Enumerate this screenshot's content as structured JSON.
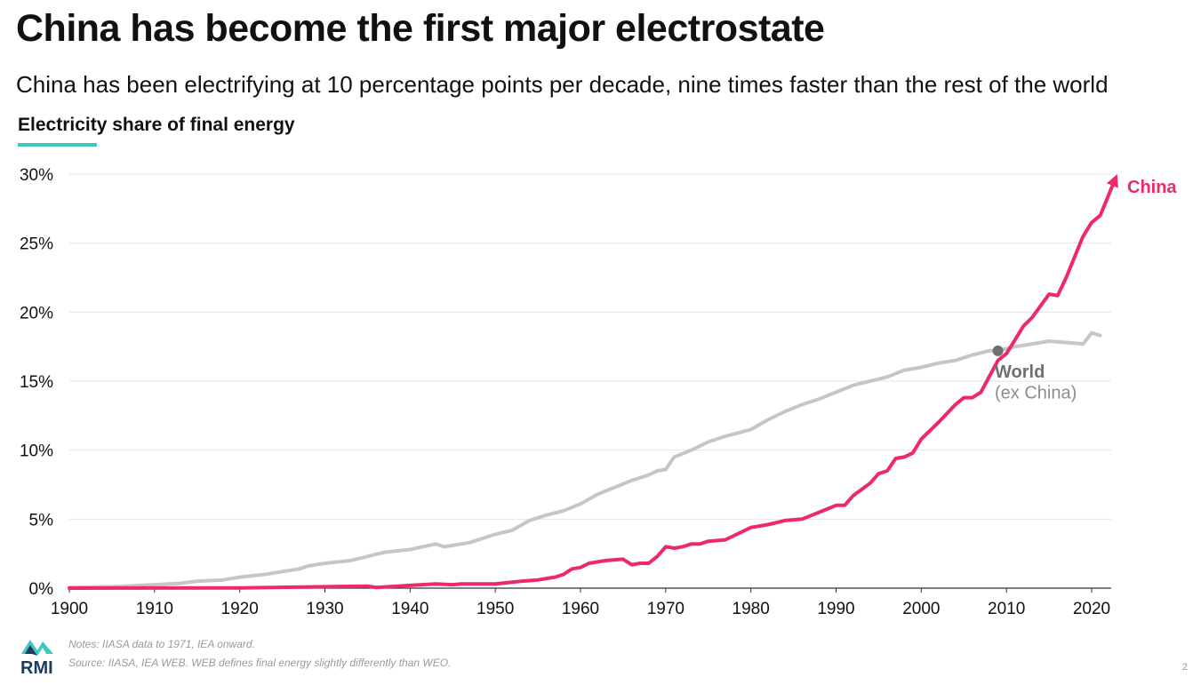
{
  "header": {
    "title": "China has become the first major electrostate",
    "subtitle": "China has been electrifying at 10 percentage points per decade, nine times faster than the rest of the world",
    "chart_label": "Electricity share of final energy"
  },
  "footer": {
    "logo_text": "RMI",
    "notes": "Notes: IIASA data to 1971, IEA onward.",
    "source": "Source: IIASA, IEA WEB. WEB defines final energy slightly differently than WEO.",
    "page_number": "2"
  },
  "colors": {
    "china": "#ee2a66",
    "world": "#c6c6c6",
    "world_label": "#6f6f6f",
    "accent": "#3cc7c0",
    "grid": "#e6e6e6",
    "axis": "#333333"
  },
  "chart_data": {
    "type": "line",
    "title": "Electricity share of final energy",
    "xlabel": "",
    "ylabel": "",
    "xlim": [
      1900,
      2023
    ],
    "ylim": [
      0,
      30
    ],
    "x_ticks": [
      1900,
      1910,
      1920,
      1930,
      1940,
      1950,
      1960,
      1970,
      1980,
      1990,
      2000,
      2010,
      2020
    ],
    "y_ticks": [
      0,
      5,
      10,
      15,
      20,
      25,
      30
    ],
    "y_tick_labels": [
      "0%",
      "5%",
      "10%",
      "15%",
      "20%",
      "25%",
      "30%"
    ],
    "grid": true,
    "series": [
      {
        "name": "World",
        "name_sub": "(ex China)",
        "key": "world",
        "points": [
          [
            1900,
            0.05
          ],
          [
            1905,
            0.1
          ],
          [
            1910,
            0.25
          ],
          [
            1913,
            0.35
          ],
          [
            1915,
            0.5
          ],
          [
            1918,
            0.6
          ],
          [
            1920,
            0.8
          ],
          [
            1923,
            1.0
          ],
          [
            1925,
            1.2
          ],
          [
            1927,
            1.4
          ],
          [
            1928,
            1.6
          ],
          [
            1930,
            1.8
          ],
          [
            1933,
            2.0
          ],
          [
            1935,
            2.3
          ],
          [
            1937,
            2.6
          ],
          [
            1940,
            2.8
          ],
          [
            1943,
            3.2
          ],
          [
            1944,
            3.0
          ],
          [
            1947,
            3.3
          ],
          [
            1950,
            3.9
          ],
          [
            1952,
            4.2
          ],
          [
            1954,
            4.9
          ],
          [
            1956,
            5.3
          ],
          [
            1958,
            5.6
          ],
          [
            1960,
            6.1
          ],
          [
            1962,
            6.8
          ],
          [
            1964,
            7.3
          ],
          [
            1966,
            7.8
          ],
          [
            1968,
            8.2
          ],
          [
            1969,
            8.5
          ],
          [
            1970,
            8.6
          ],
          [
            1971,
            9.5
          ],
          [
            1973,
            10.0
          ],
          [
            1975,
            10.6
          ],
          [
            1977,
            11.0
          ],
          [
            1980,
            11.5
          ],
          [
            1982,
            12.2
          ],
          [
            1984,
            12.8
          ],
          [
            1986,
            13.3
          ],
          [
            1988,
            13.7
          ],
          [
            1990,
            14.2
          ],
          [
            1992,
            14.7
          ],
          [
            1994,
            15.0
          ],
          [
            1996,
            15.3
          ],
          [
            1998,
            15.8
          ],
          [
            2000,
            16.0
          ],
          [
            2002,
            16.3
          ],
          [
            2004,
            16.5
          ],
          [
            2006,
            16.9
          ],
          [
            2008,
            17.2
          ],
          [
            2009,
            17.2
          ],
          [
            2011,
            17.5
          ],
          [
            2013,
            17.7
          ],
          [
            2015,
            17.9
          ],
          [
            2017,
            17.8
          ],
          [
            2019,
            17.7
          ],
          [
            2020,
            18.5
          ],
          [
            2021,
            18.3
          ]
        ]
      },
      {
        "name": "China",
        "key": "china",
        "points": [
          [
            1900,
            0.0
          ],
          [
            1920,
            0.02
          ],
          [
            1930,
            0.1
          ],
          [
            1935,
            0.15
          ],
          [
            1936,
            0.05
          ],
          [
            1940,
            0.2
          ],
          [
            1943,
            0.3
          ],
          [
            1945,
            0.25
          ],
          [
            1946,
            0.3
          ],
          [
            1950,
            0.3
          ],
          [
            1953,
            0.5
          ],
          [
            1955,
            0.6
          ],
          [
            1957,
            0.8
          ],
          [
            1958,
            1.0
          ],
          [
            1959,
            1.4
          ],
          [
            1960,
            1.5
          ],
          [
            1961,
            1.8
          ],
          [
            1963,
            2.0
          ],
          [
            1965,
            2.1
          ],
          [
            1966,
            1.7
          ],
          [
            1967,
            1.8
          ],
          [
            1968,
            1.8
          ],
          [
            1969,
            2.3
          ],
          [
            1970,
            3.0
          ],
          [
            1971,
            2.9
          ],
          [
            1972,
            3.0
          ],
          [
            1973,
            3.2
          ],
          [
            1974,
            3.2
          ],
          [
            1975,
            3.4
          ],
          [
            1977,
            3.5
          ],
          [
            1978,
            3.8
          ],
          [
            1980,
            4.4
          ],
          [
            1982,
            4.6
          ],
          [
            1984,
            4.9
          ],
          [
            1986,
            5.0
          ],
          [
            1988,
            5.5
          ],
          [
            1990,
            6.0
          ],
          [
            1991,
            6.0
          ],
          [
            1992,
            6.7
          ],
          [
            1994,
            7.6
          ],
          [
            1995,
            8.3
          ],
          [
            1996,
            8.5
          ],
          [
            1997,
            9.4
          ],
          [
            1998,
            9.5
          ],
          [
            1999,
            9.8
          ],
          [
            2000,
            10.8
          ],
          [
            2002,
            12.0
          ],
          [
            2004,
            13.3
          ],
          [
            2005,
            13.8
          ],
          [
            2006,
            13.8
          ],
          [
            2007,
            14.2
          ],
          [
            2009,
            16.5
          ],
          [
            2010,
            17.0
          ],
          [
            2011,
            18.0
          ],
          [
            2012,
            19.0
          ],
          [
            2013,
            19.6
          ],
          [
            2015,
            21.3
          ],
          [
            2016,
            21.2
          ],
          [
            2017,
            22.5
          ],
          [
            2018,
            24.0
          ],
          [
            2019,
            25.5
          ],
          [
            2020,
            26.5
          ],
          [
            2021,
            27.0
          ],
          [
            2022,
            28.5
          ],
          [
            2023,
            30.0
          ]
        ]
      }
    ],
    "annotations": [
      {
        "type": "point",
        "x": 2009,
        "y": 17.2,
        "label": "World / China crossover"
      }
    ]
  }
}
